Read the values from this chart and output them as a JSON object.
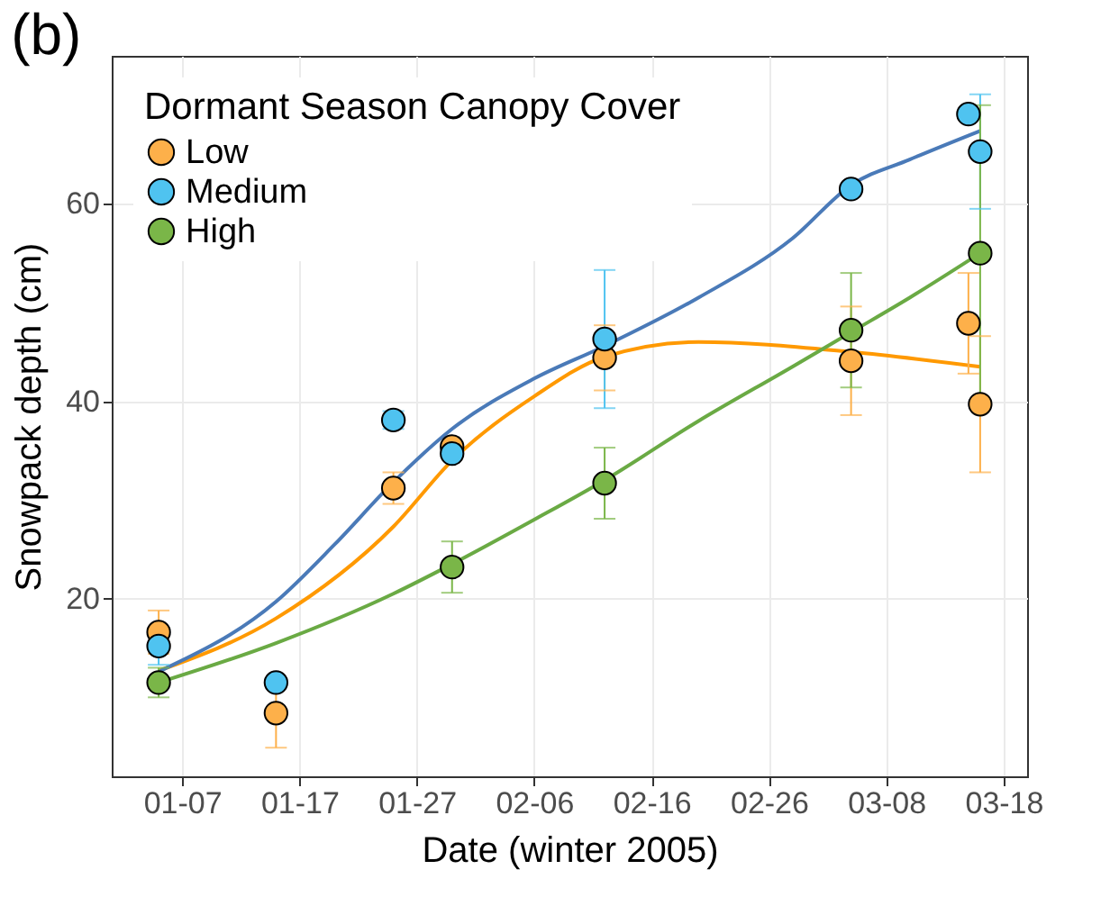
{
  "chart_data": {
    "type": "scatter",
    "title": "(b)",
    "xlabel": "Date (winter 2005)",
    "ylabel": "Snowpack depth (cm)",
    "legend_title": "Dormant Season Canopy Cover",
    "legend": "top left",
    "grid": true,
    "line_style": "solid",
    "xlim": [
      "--01-01",
      "--03-20"
    ],
    "xticks": [
      {
        "value": "--01-07",
        "label": "01-07"
      },
      {
        "value": "--01-17",
        "label": "01-17"
      },
      {
        "value": "--01-27",
        "label": "01-27"
      },
      {
        "value": "--02-06",
        "label": "02-06"
      },
      {
        "value": "--02-16",
        "label": "02-16"
      },
      {
        "value": "--02-26",
        "label": "02-26"
      },
      {
        "value": "--03-08",
        "label": "03-08"
      },
      {
        "value": "--03-18",
        "label": "03-18"
      }
    ],
    "ylim": [
      2,
      75
    ],
    "yticks": [
      20,
      40,
      60
    ],
    "series": [
      {
        "type": "line",
        "color": "#ff9900",
        "x": [
          "--01-05",
          "--01-15",
          "--01-25",
          "--01-30",
          "--02-06",
          "--02-12",
          "--02-20",
          "--03-05",
          "--03-16"
        ],
        "values": [
          12.7,
          18,
          27.3,
          34,
          40.5,
          44.5,
          46,
          45,
          43.5
        ]
      },
      {
        "type": "line",
        "color": "#4a7ab8",
        "x": [
          "--01-05",
          "--01-15",
          "--01-20",
          "--01-25",
          "--01-30",
          "--02-06",
          "--02-12",
          "--02-20",
          "--02-28",
          "--03-05",
          "--03-10",
          "--03-16"
        ],
        "values": [
          12.6,
          19.7,
          25.5,
          31.8,
          37.2,
          42.3,
          45.6,
          50.5,
          56.5,
          61.9,
          64.5,
          67.4
        ]
      },
      {
        "type": "line",
        "color": "#6aaa44",
        "x": [
          "--01-05",
          "--01-15",
          "--01-25",
          "--01-30",
          "--02-06",
          "--02-12",
          "--02-20",
          "--02-28",
          "--03-05",
          "--03-10",
          "--03-16"
        ],
        "values": [
          11.5,
          15.5,
          20.5,
          23.5,
          28,
          32,
          38,
          43.5,
          47,
          50.5,
          55
        ]
      },
      {
        "type": "scatter",
        "name": "Low",
        "color": "#fdb04a",
        "x": [
          "--01-05",
          "--01-15",
          "--01-25",
          "--01-30",
          "--02-12",
          "--03-05",
          "--03-15",
          "--03-16"
        ],
        "values": [
          16.6,
          8.4,
          31.2,
          35.4,
          44.4,
          44.1,
          47.9,
          39.7
        ],
        "errors": [
          2.2,
          3.5,
          1.6,
          null,
          3.3,
          5.5,
          5.1,
          6.9
        ]
      },
      {
        "type": "scatter",
        "name": "Medium",
        "color": "#4fc3f0",
        "x": [
          "--01-05",
          "--01-15",
          "--01-25",
          "--01-30",
          "--02-12",
          "--03-05",
          "--03-15",
          "--03-16"
        ],
        "values": [
          15.2,
          11.5,
          38.1,
          34.7,
          46.3,
          61.5,
          69.1,
          65.3
        ],
        "errors": [
          1.9,
          null,
          0.9,
          null,
          7,
          null,
          null,
          5.8
        ]
      },
      {
        "type": "scatter",
        "name": "High",
        "color": "#7ab648",
        "x": [
          "--01-05",
          "--01-30",
          "--02-12",
          "--03-05",
          "--03-16"
        ],
        "values": [
          11.5,
          23.2,
          31.7,
          47.2,
          55
        ],
        "errors": [
          1.5,
          2.6,
          3.6,
          5.8,
          15
        ]
      }
    ]
  }
}
